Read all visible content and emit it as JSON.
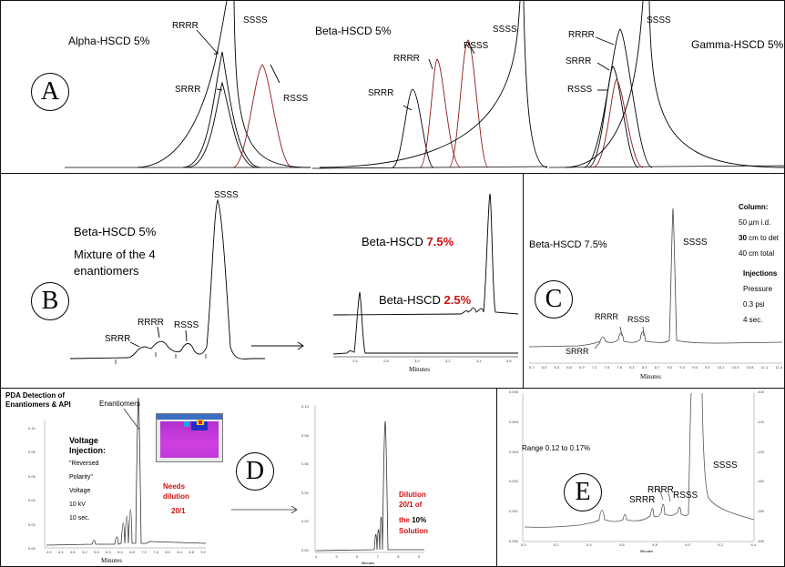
{
  "panel_a": {
    "letter": "A",
    "alpha_title": "Alpha-HSCD 5%",
    "beta_title": "Beta-HSCD 5%",
    "gamma_title": "Gamma-HSCD 5%",
    "peaks": {
      "ssss": "SSSS",
      "rrrr": "RRRR",
      "srrr": "SRRR",
      "rsss": "RSSS"
    }
  },
  "panel_b": {
    "letter": "B",
    "title": "Beta-HSCD 5%",
    "subtitle": "Mixture of the 4 enantiomers",
    "inset_top_prefix": "Beta-HSCD ",
    "inset_top_conc": "7.5%",
    "inset_bottom_prefix": "Beta-HSCD ",
    "inset_bottom_conc": "2.5%",
    "x_axis_label": "Minutes",
    "x_ticks": [
      "2.6",
      "2.8",
      "3.0",
      "3.2",
      "3.4",
      "3.6"
    ],
    "peaks": {
      "ssss": "SSSS",
      "rrrr": "RRRR",
      "srrr": "SRRR",
      "rsss": "RSSS"
    }
  },
  "panel_c": {
    "letter": "C",
    "title": "Beta-HSCD 7.5%",
    "column_heading": "Column:",
    "column_line1": "50 µm i.d.",
    "column_line2_bold": "30",
    "column_line2_rest": " cm to det",
    "column_line3": "40 cm total",
    "injections_heading": "Injections",
    "injections_line1": "Pressure",
    "injections_line2": "0.3 psi",
    "injections_line3": "4 sec.",
    "x_axis_label": "Minutes",
    "x_ticks": [
      "5.7",
      "6.0",
      "6.3",
      "6.6",
      "6.9",
      "7.2",
      "7.5",
      "7.8",
      "8.1",
      "8.4",
      "8.7",
      "9.0",
      "9.3",
      "9.6",
      "9.9",
      "10.2",
      "10.5",
      "10.8",
      "11.1",
      "11.4"
    ],
    "peaks": {
      "ssss": "SSSS",
      "rrrr": "RRRR",
      "srrr": "SRRR",
      "rsss": "RSSS"
    }
  },
  "panel_d": {
    "letter": "D",
    "title_line1": "PDA Detection of",
    "title_line2": "Enantiomers & API",
    "enantiomers_label": "Enantiomers",
    "voltage_heading1": "Voltage",
    "voltage_heading2": "Injection:",
    "rev_line1": "\"Reversed",
    "rev_line2": "Polarity\"",
    "voltage_label": "Voltage",
    "voltage_value": "10 kV",
    "time_value": "10 sec.",
    "needs_line1": "Needs",
    "needs_line2": "dilution",
    "needs_line3": "20/1",
    "left_x_label": "Minutes",
    "left_y_ticks": [
      "0.10",
      "0.08",
      "0.06",
      "0.04",
      "0.02",
      "0.00"
    ],
    "left_x_ticks": [
      "4.0",
      "4.4",
      "4.8",
      "5.2",
      "5.6",
      "6.0",
      "6.4",
      "6.8",
      "7.2",
      "7.6",
      "8.0",
      "8.4",
      "8.8",
      "9.2"
    ],
    "right_y_ticks": [
      "0.10",
      "0.08",
      "0.06",
      "0.04",
      "0.02",
      "0.00"
    ],
    "right_x_ticks": [
      "4",
      "5",
      "6",
      "7",
      "8",
      "9"
    ],
    "right_x_label": "Minutes",
    "dilution_line1": "Dilution",
    "dilution_line2": "20/1 of",
    "dilution_line3a": "the ",
    "dilution_line3b": "10%",
    "dilution_line4": "Solution"
  },
  "panel_e": {
    "letter": "E",
    "range_text": "Range 0.12 to 0.17%",
    "x_axis_label": "Minutes",
    "left_y_ticks": [
      "0.005",
      "0.004",
      "0.003",
      "0.002",
      "0.001",
      "0.000"
    ],
    "right_y_ticks": [
      "-100",
      "-120",
      "-140",
      "-160",
      "-180",
      "-200"
    ],
    "x_ticks": [
      "5.0",
      "5.2",
      "5.4",
      "5.6",
      "5.8",
      "6.0",
      "6.2",
      "6.4"
    ],
    "peaks": {
      "ssss": "SSSS",
      "rrrr": "RRRR",
      "srrr": "SRRR",
      "rsss": "RSSS"
    }
  },
  "colors": {
    "trace": "#000000",
    "trace_dark_red": "#8b1a1a",
    "accent_red": "#d01010",
    "diagonal_bg": "#e6e6e6"
  },
  "chart_data": [
    {
      "type": "line",
      "title": "Alpha-HSCD 5%",
      "series": [
        {
          "name": "SRRR"
        },
        {
          "name": "RRRR"
        },
        {
          "name": "RSSS"
        },
        {
          "name": "SSSS"
        }
      ]
    },
    {
      "type": "line",
      "title": "Beta-HSCD 5%",
      "series": [
        {
          "name": "SRRR"
        },
        {
          "name": "RRRR"
        },
        {
          "name": "RSSS"
        },
        {
          "name": "SSSS"
        }
      ]
    },
    {
      "type": "line",
      "title": "Gamma-HSCD 5%",
      "series": [
        {
          "name": "RRRR"
        },
        {
          "name": "SRRR"
        },
        {
          "name": "RSSS"
        },
        {
          "name": "SSSS"
        }
      ]
    },
    {
      "type": "line",
      "title": "Beta-HSCD 5%",
      "peaks": [
        "SRRR",
        "RRRR",
        "RSSS",
        "SSSS"
      ]
    },
    {
      "type": "line",
      "title": "Beta-HSCD 7.5%",
      "peaks": [
        "SRRR",
        "RRRR",
        "RSSS",
        "SSSS"
      ]
    },
    {
      "type": "line",
      "xlabel": "Minutes",
      "y_ticks": [
        0.1,
        0.08,
        0.06,
        0.04,
        0.02,
        0.0
      ],
      "xlim": [
        4.0,
        9.2
      ]
    },
    {
      "type": "line",
      "xlabel": "Minutes",
      "y_ticks": [
        0.1,
        0.08,
        0.06,
        0.04,
        0.02,
        0.0
      ],
      "xlim": [
        4,
        9
      ]
    },
    {
      "type": "line",
      "xlabel": "Minutes",
      "xlim": [
        5.0,
        6.4
      ],
      "ylim": [
        0.0,
        0.005
      ],
      "y2lim": [
        -200,
        -100
      ],
      "peaks": [
        "SRRR",
        "RRRR",
        "RSSS",
        "SSSS"
      ]
    }
  ]
}
